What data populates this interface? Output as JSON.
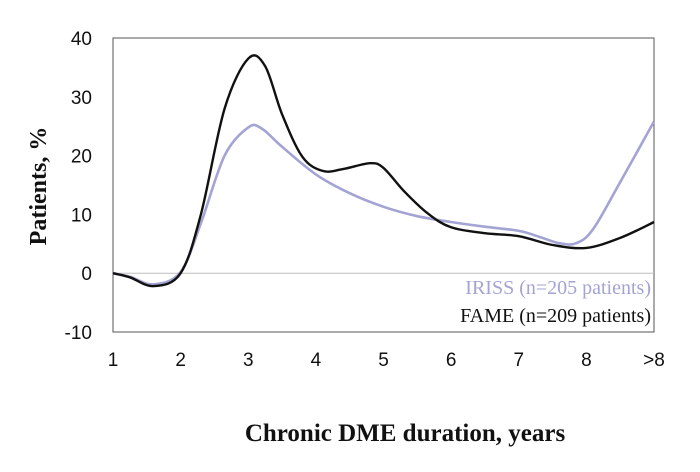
{
  "chart_data": {
    "type": "line",
    "title": "",
    "xlabel": "Chronic DME duration, years",
    "ylabel": "Patients, %",
    "ylim": [
      -10,
      40
    ],
    "yticks": [
      "40",
      "30",
      "20",
      "10",
      "0",
      "-10"
    ],
    "yticks_values": [
      40,
      30,
      20,
      10,
      0,
      -10
    ],
    "categories": [
      "1",
      "2",
      "3",
      "4",
      "5",
      "6",
      "7",
      "8",
      ">8"
    ],
    "grid": false,
    "legend_position": "bottom-right",
    "series": [
      {
        "name": "IRISS (n=205 patients)",
        "color": "#a3a3d4",
        "x": [
          1,
          1.25,
          1.6,
          2,
          2.3,
          2.65,
          3,
          3.2,
          3.5,
          4,
          4.5,
          5,
          5.5,
          6,
          6.5,
          7,
          7.3,
          7.6,
          7.85,
          8.1,
          8.5,
          9
        ],
        "values": [
          0,
          -0.6,
          -1.9,
          0.2,
          8.5,
          20,
          24.8,
          24.6,
          21.5,
          16.8,
          13.6,
          11.3,
          9.7,
          8.7,
          7.9,
          7.2,
          6.2,
          5.1,
          5.1,
          7.5,
          15.5,
          25.8
        ]
      },
      {
        "name": "FAME (n=209 patients)",
        "color": "#111111",
        "x": [
          1,
          1.25,
          1.6,
          2,
          2.3,
          2.65,
          3,
          3.25,
          3.5,
          3.8,
          4.1,
          4.4,
          4.8,
          5,
          5.3,
          5.65,
          6,
          6.5,
          7,
          7.5,
          8,
          8.5,
          9
        ],
        "values": [
          0,
          -0.7,
          -2.2,
          0,
          10,
          28,
          36.5,
          35.2,
          27,
          19.8,
          17.4,
          17.7,
          18.7,
          17.9,
          14,
          10.2,
          7.8,
          6.8,
          6.3,
          4.8,
          4.3,
          6,
          8.7
        ]
      }
    ]
  }
}
